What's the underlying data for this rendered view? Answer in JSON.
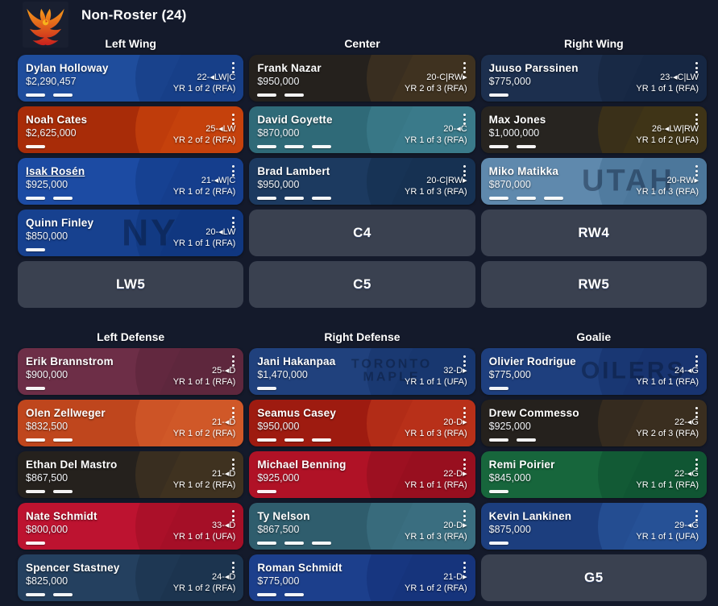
{
  "header": {
    "title": "Non-Roster (24)"
  },
  "icons": {
    "logo": "phoenix-logo",
    "card_menu": "kebab-menu-icon"
  },
  "colors": {
    "page_bg": "#141a2b",
    "empty_slot_bg": "#3a4150",
    "text": "#ffffff",
    "logo_flame_top": "#f59a1a",
    "logo_flame_bottom": "#c9201d",
    "logo_bg": "#191f30"
  },
  "sections": [
    {
      "columns": [
        {
          "header": "Left Wing",
          "slots": [
            {
              "type": "player",
              "name": "Dylan Holloway",
              "salary": "$2,290,457",
              "age_pos": "22-◂LW|C",
              "contract": "YR 1 of 2 (RFA)",
              "bars": 2,
              "bg": "#1f4d9c",
              "deco": "#143a80"
            },
            {
              "type": "player",
              "name": "Noah Cates",
              "salary": "$2,625,000",
              "age_pos": "25-◂LW",
              "contract": "YR 2 of 2 (RFA)",
              "bars": 1,
              "bg": "#a82c08",
              "deco": "#d14a0e"
            },
            {
              "type": "player",
              "name": "Isak Rosén",
              "salary": "$925,000",
              "age_pos": "21-◂W|C",
              "contract": "YR 1 of 2 (RFA)",
              "bars": 2,
              "underline": true,
              "bg": "#1c4ba3",
              "deco": "#133a85"
            },
            {
              "type": "player",
              "name": "Quinn Finley",
              "salary": "$850,000",
              "age_pos": "20-◂LW",
              "contract": "YR 1 of 1 (RFA)",
              "bars": 1,
              "bg": "#17418f",
              "deco": "#0f347a",
              "watermark": "NY"
            },
            {
              "type": "empty",
              "label": "LW5"
            }
          ]
        },
        {
          "header": "Center",
          "slots": [
            {
              "type": "player",
              "name": "Frank Nazar",
              "salary": "$950,000",
              "age_pos": "20-C|RW▸",
              "contract": "YR 2 of 3 (RFA)",
              "bars": 2,
              "bg": "#25211d",
              "deco": "#4a3a22"
            },
            {
              "type": "player",
              "name": "David Goyette",
              "salary": "$870,000",
              "age_pos": "20-◂C",
              "contract": "YR 1 of 3 (RFA)",
              "bars": 3,
              "bg": "#2f6a78",
              "deco": "#3f8291"
            },
            {
              "type": "player",
              "name": "Brad Lambert",
              "salary": "$950,000",
              "age_pos": "20-C|RW▸",
              "contract": "YR 1 of 3 (RFA)",
              "bars": 3,
              "bg": "#1c3a60",
              "deco": "#142d4d"
            },
            {
              "type": "empty",
              "label": "C4"
            },
            {
              "type": "empty",
              "label": "C5"
            }
          ]
        },
        {
          "header": "Right Wing",
          "slots": [
            {
              "type": "player",
              "name": "Juuso Parssinen",
              "salary": "$775,000",
              "age_pos": "23-◂C|LW",
              "contract": "YR 1 of 1 (RFA)",
              "bars": 1,
              "bg": "#1c2f4e",
              "deco": "#15253e"
            },
            {
              "type": "player",
              "name": "Max Jones",
              "salary": "$1,000,000",
              "age_pos": "26-◂LW|RW",
              "contract": "YR 1 of 2 (UFA)",
              "bars": 2,
              "bg": "#272420",
              "deco": "#4a3b14"
            },
            {
              "type": "player",
              "name": "Miko Matikka",
              "salary": "$870,000",
              "age_pos": "20-RW▸",
              "contract": "YR 1 of 3 (RFA)",
              "bars": 3,
              "bg": "#5f89ad",
              "deco": "#446f94",
              "watermark": "UTAH"
            },
            {
              "type": "empty",
              "label": "RW4"
            },
            {
              "type": "empty",
              "label": "RW5"
            }
          ]
        }
      ]
    },
    {
      "columns": [
        {
          "header": "Left Defense",
          "slots": [
            {
              "type": "player",
              "name": "Erik Brannstrom",
              "salary": "$900,000",
              "age_pos": "25-◂D",
              "contract": "YR 1 of 1 (RFA)",
              "bars": 1,
              "bg": "#6d2e47",
              "deco": "#592438"
            },
            {
              "type": "player",
              "name": "Olen Zellweger",
              "salary": "$832,500",
              "age_pos": "21-◂D",
              "contract": "YR 1 of 2 (RFA)",
              "bars": 2,
              "bg": "#bf461d",
              "deco": "#d8602e"
            },
            {
              "type": "player",
              "name": "Ethan Del Mastro",
              "salary": "$867,500",
              "age_pos": "21-◂D",
              "contract": "YR 1 of 2 (RFA)",
              "bars": 2,
              "bg": "#25211d",
              "deco": "#4a3a22"
            },
            {
              "type": "player",
              "name": "Nate Schmidt",
              "salary": "$800,000",
              "age_pos": "33-◂D",
              "contract": "YR 1 of 1 (UFA)",
              "bars": 1,
              "bg": "#bd1330",
              "deco": "#9c0f25"
            },
            {
              "type": "player",
              "name": "Spencer Stastney",
              "salary": "$825,000",
              "age_pos": "24-◂D",
              "contract": "YR 1 of 2 (RFA)",
              "bars": 2,
              "bg": "#24405f",
              "deco": "#1a3049"
            }
          ]
        },
        {
          "header": "Right Defense",
          "slots": [
            {
              "type": "player",
              "name": "Jani Hakanpaa",
              "salary": "$1,470,000",
              "age_pos": "32-D▸",
              "contract": "YR 1 of 1 (UFA)",
              "bars": 1,
              "bg": "#20417d",
              "deco": "#16336a",
              "watermark": "TORONTO\nMAPLE"
            },
            {
              "type": "player",
              "name": "Seamus Casey",
              "salary": "$950,000",
              "age_pos": "20-D▸",
              "contract": "YR 1 of 3 (RFA)",
              "bars": 3,
              "bg": "#9e1b10",
              "deco": "#c23a1e"
            },
            {
              "type": "player",
              "name": "Michael Benning",
              "salary": "$925,000",
              "age_pos": "22-D▸",
              "contract": "YR 1 of 1 (RFA)",
              "bars": 1,
              "bg": "#b01226",
              "deco": "#8e0e1e"
            },
            {
              "type": "player",
              "name": "Ty Nelson",
              "salary": "$867,500",
              "age_pos": "20-D▸",
              "contract": "YR 1 of 3 (RFA)",
              "bars": 3,
              "bg": "#2f5d6d",
              "deco": "#3f7689"
            },
            {
              "type": "player",
              "name": "Roman Schmidt",
              "salary": "$775,000",
              "age_pos": "21-D▸",
              "contract": "YR 1 of 2 (RFA)",
              "bars": 2,
              "bg": "#1c3f8c",
              "deco": "#143076"
            }
          ]
        },
        {
          "header": "Goalie",
          "slots": [
            {
              "type": "player",
              "name": "Olivier Rodrigue",
              "salary": "$775,000",
              "age_pos": "24-◂G",
              "contract": "YR 1 of 1 (RFA)",
              "bars": 1,
              "bg": "#1e3f7e",
              "deco": "#16316a",
              "watermark": "OILERS"
            },
            {
              "type": "player",
              "name": "Drew Commesso",
              "salary": "$925,000",
              "age_pos": "22-◂G",
              "contract": "YR 2 of 3 (RFA)",
              "bars": 2,
              "bg": "#25211d",
              "deco": "#443520"
            },
            {
              "type": "player",
              "name": "Remi Poirier",
              "salary": "$845,000",
              "age_pos": "22-◂G",
              "contract": "YR 1 of 1 (RFA)",
              "bars": 1,
              "bg": "#17663c",
              "deco": "#0f5130"
            },
            {
              "type": "player",
              "name": "Kevin Lankinen",
              "salary": "$875,000",
              "age_pos": "29-◂G",
              "contract": "YR 1 of 1 (UFA)",
              "bars": 1,
              "bg": "#1c3e7e",
              "deco": "#2b5aa0"
            },
            {
              "type": "empty",
              "label": "G5"
            }
          ]
        }
      ]
    }
  ]
}
